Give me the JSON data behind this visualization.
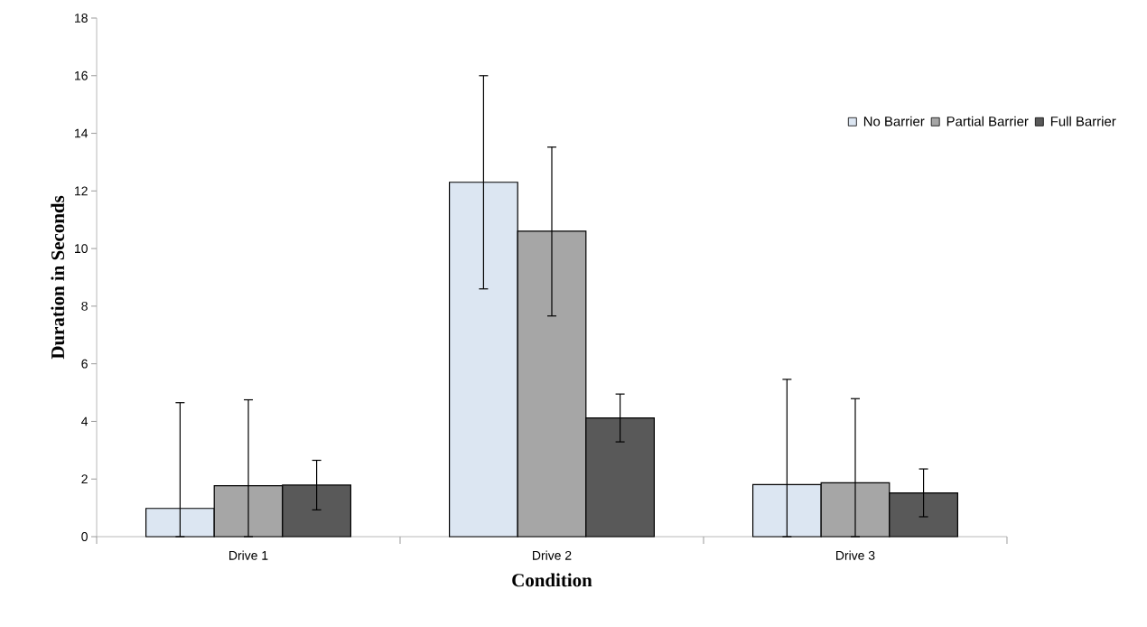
{
  "chart_data": {
    "type": "bar",
    "xlabel": "Condition",
    "ylabel": "Duration in Seconds",
    "categories": [
      "Drive 1",
      "Drive 2",
      "Drive 3"
    ],
    "series": [
      {
        "name": "No Barrier",
        "color": "#dce6f2",
        "values": [
          0.98,
          12.3,
          1.81
        ],
        "errors": [
          [
            0,
            4.65
          ],
          [
            8.6,
            16.0
          ],
          [
            0,
            5.46
          ]
        ]
      },
      {
        "name": "Partial Barrier",
        "color": "#a6a6a6",
        "values": [
          1.77,
          10.6,
          1.87
        ],
        "errors": [
          [
            0,
            4.75
          ],
          [
            7.66,
            13.52
          ],
          [
            0,
            4.79
          ]
        ]
      },
      {
        "name": "Full Barrier",
        "color": "#595959",
        "values": [
          1.79,
          4.12,
          1.52
        ],
        "errors": [
          0.86,
          0.83,
          0.83
        ]
      }
    ],
    "ylim": [
      0,
      18
    ],
    "yticks": [
      0,
      2,
      4,
      6,
      8,
      10,
      12,
      14,
      16,
      18
    ],
    "grid": false,
    "legend": "top right"
  }
}
